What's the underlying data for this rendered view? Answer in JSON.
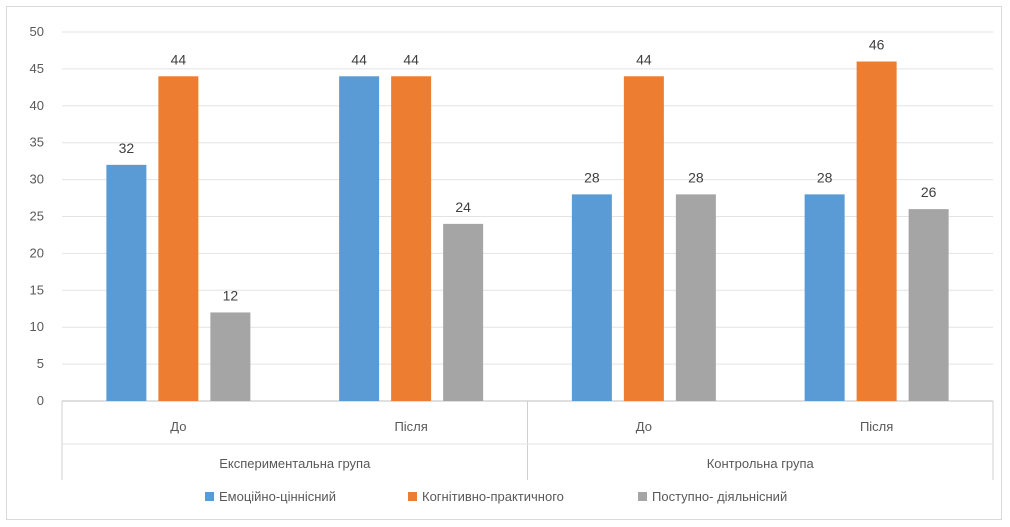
{
  "chart_data": {
    "type": "bar",
    "groups": [
      {
        "label": "Експериментальна група",
        "categories": [
          "До",
          "Після"
        ]
      },
      {
        "label": "Контрольна група",
        "categories": [
          "До",
          "Після"
        ]
      }
    ],
    "categories": [
      "До",
      "Після",
      "До",
      "Після"
    ],
    "series": [
      {
        "name": "Емоційно-ціннісний",
        "color": "#5b9bd5",
        "values": [
          32,
          44,
          28,
          28
        ]
      },
      {
        "name": "Когнітивно-практичного",
        "color": "#ed7d31",
        "values": [
          44,
          44,
          44,
          46
        ]
      },
      {
        "name": "Поступно- діяльнісний",
        "color": "#a5a5a5",
        "values": [
          12,
          24,
          28,
          26
        ]
      }
    ],
    "ylim": [
      0,
      50
    ],
    "yticks": [
      0,
      5,
      10,
      15,
      20,
      25,
      30,
      35,
      40,
      45,
      50
    ],
    "grid": true,
    "legend": "bottom"
  }
}
